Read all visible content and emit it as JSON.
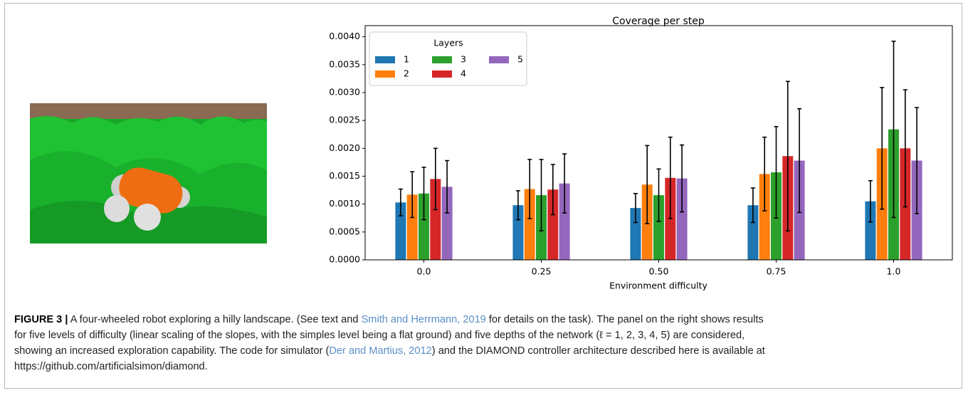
{
  "chart_data": {
    "type": "bar",
    "title": "Coverage per step",
    "x_label": "Environment difficulty",
    "categories": [
      "0.0",
      "0.25",
      "0.50",
      "0.75",
      "1.0"
    ],
    "legend_title": "Layers",
    "legend": "upper left",
    "series": [
      {
        "name": "1",
        "color": "#1f77b4",
        "values": [
          0.00103,
          0.00098,
          0.00093,
          0.00098,
          0.00105
        ],
        "errors": [
          0.00024,
          0.00026,
          0.00026,
          0.00031,
          0.00037
        ]
      },
      {
        "name": "2",
        "color": "#ff7f0e",
        "values": [
          0.00117,
          0.00127,
          0.00135,
          0.00154,
          0.002
        ],
        "errors": [
          0.00041,
          0.00053,
          0.0007,
          0.00066,
          0.00109
        ]
      },
      {
        "name": "3",
        "color": "#2ca02c",
        "values": [
          0.00119,
          0.00116,
          0.00116,
          0.00157,
          0.00234
        ],
        "errors": [
          0.00047,
          0.00064,
          0.00047,
          0.00082,
          0.00158
        ]
      },
      {
        "name": "4",
        "color": "#d62728",
        "values": [
          0.00145,
          0.00126,
          0.00147,
          0.00186,
          0.002
        ],
        "errors": [
          0.00055,
          0.00045,
          0.00073,
          0.00134,
          0.00105
        ]
      },
      {
        "name": "5",
        "color": "#9467bd",
        "values": [
          0.00131,
          0.00137,
          0.00146,
          0.00178,
          0.00178
        ],
        "errors": [
          0.00047,
          0.00053,
          0.0006,
          0.00093,
          0.00095
        ]
      }
    ],
    "ylim": [
      0,
      0.0042
    ],
    "yticks": [
      {
        "value": 0,
        "label": "0.0000"
      },
      {
        "value": 0.0005,
        "label": "0.0005"
      },
      {
        "value": 0.001,
        "label": "0.0010"
      },
      {
        "value": 0.0015,
        "label": "0.0015"
      },
      {
        "value": 0.002,
        "label": "0.0020"
      },
      {
        "value": 0.0025,
        "label": "0.0025"
      },
      {
        "value": 0.003,
        "label": "0.0030"
      },
      {
        "value": 0.0035,
        "label": "0.0035"
      },
      {
        "value": 0.004,
        "label": "0.0040"
      }
    ]
  },
  "caption": {
    "label": "FIGURE 3 |",
    "segments": [
      " A four-wheeled robot exploring a hilly landscape. (See text and ",
      "Smith and Herrmann, 2019",
      " for details on the task). The panel on the right shows results",
      "for five levels of difficulty (linear scaling of the slopes, with the simples level being a flat ground) and five depths of the network (ℓ = 1, 2, 3, 4, 5) are considered,",
      "showing an increased exploration capability. The code for simulator (",
      "Der and Martius, 2012",
      ") and the DIAMOND controller architecture described here is available at",
      "https://github.com/artificialsimon/diamond."
    ]
  }
}
